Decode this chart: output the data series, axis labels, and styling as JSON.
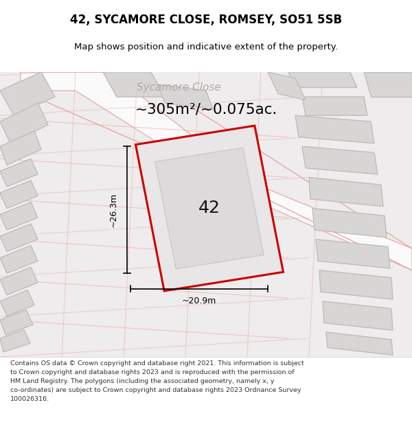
{
  "title_line1": "42, SYCAMORE CLOSE, ROMSEY, SO51 5SB",
  "title_line2": "Map shows position and indicative extent of the property.",
  "area_text": "~305m²/~0.075ac.",
  "property_number": "42",
  "width_label": "~20.9m",
  "height_label": "~26.3m",
  "street_label": "Sycamore Close",
  "footer_lines": [
    "Contains OS data © Crown copyright and database right 2021. This information is subject",
    "to Crown copyright and database rights 2023 and is reproduced with the permission of",
    "HM Land Registry. The polygons (including the associated geometry, namely x, y",
    "co-ordinates) are subject to Crown copyright and database rights 2023 Ordnance Survey",
    "100026316."
  ],
  "map_bg": "#eeecec",
  "road_fill": "#fafafa",
  "road_outline_color": "#e8a0a0",
  "building_color": "#d8d5d5",
  "building_outline": "#c0bcbc",
  "property_fill": "#e8e6e6",
  "property_outline": "#cc0000",
  "dim_line_color": "#000000",
  "text_color": "#000000",
  "footer_color": "#333333",
  "street_text_color": "#b0aaaa"
}
